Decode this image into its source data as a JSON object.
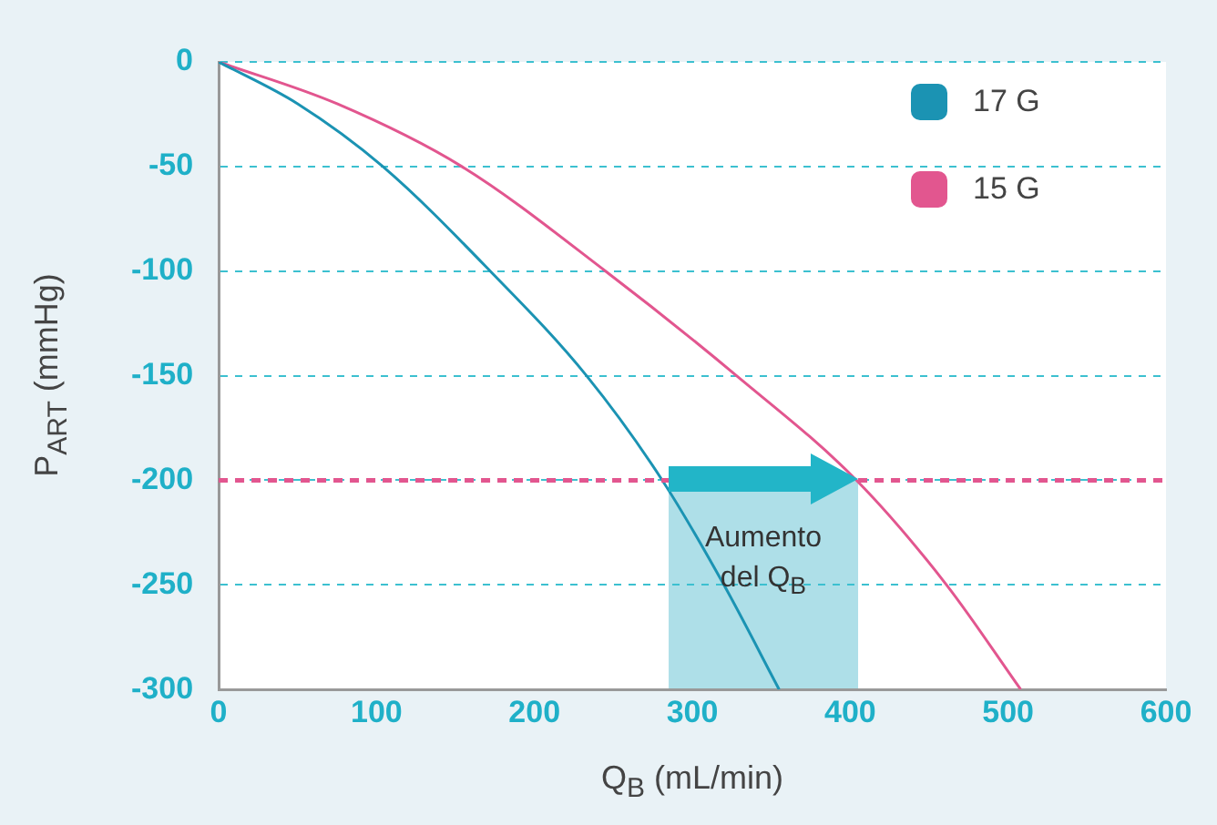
{
  "chart_data": {
    "type": "line",
    "xlabel": "Q$_{B}$ (mL/min)",
    "ylabel": "P$_{ART}$ (mmHg)",
    "series": [
      {
        "name": "17 G",
        "color": "#1b93b3",
        "x": [
          0,
          50,
          104,
          172,
          233,
          281,
          320,
          355
        ],
        "values": [
          0,
          -20,
          -50,
          -100,
          -150,
          -200,
          -250,
          -300
        ]
      },
      {
        "name": "15 G",
        "color": "#e2568f",
        "x": [
          0,
          75,
          154,
          245,
          328,
          404,
          461,
          508
        ],
        "values": [
          0,
          -20,
          -50,
          -100,
          -150,
          -200,
          -250,
          -300
        ]
      }
    ],
    "xlim": [
      0,
      600
    ],
    "xticks": [
      0,
      100,
      200,
      300,
      400,
      500,
      600
    ],
    "ylim": [
      -300,
      0
    ],
    "yticks": [
      0,
      -50,
      -100,
      -150,
      -200,
      -250,
      -300
    ],
    "grid": "y",
    "legend": "top right",
    "marker": "none",
    "line_style": "solid",
    "ref_lines": [
      {
        "axis": "y",
        "value": -200,
        "color": "#e2568f",
        "line_style": "dashed"
      }
    ],
    "bands": [
      {
        "axis": "x",
        "from": 285,
        "to": 405,
        "color": "#a5dbe5"
      }
    ],
    "annotations": [
      "Aumento del Q$_{B}$"
    ]
  }
}
